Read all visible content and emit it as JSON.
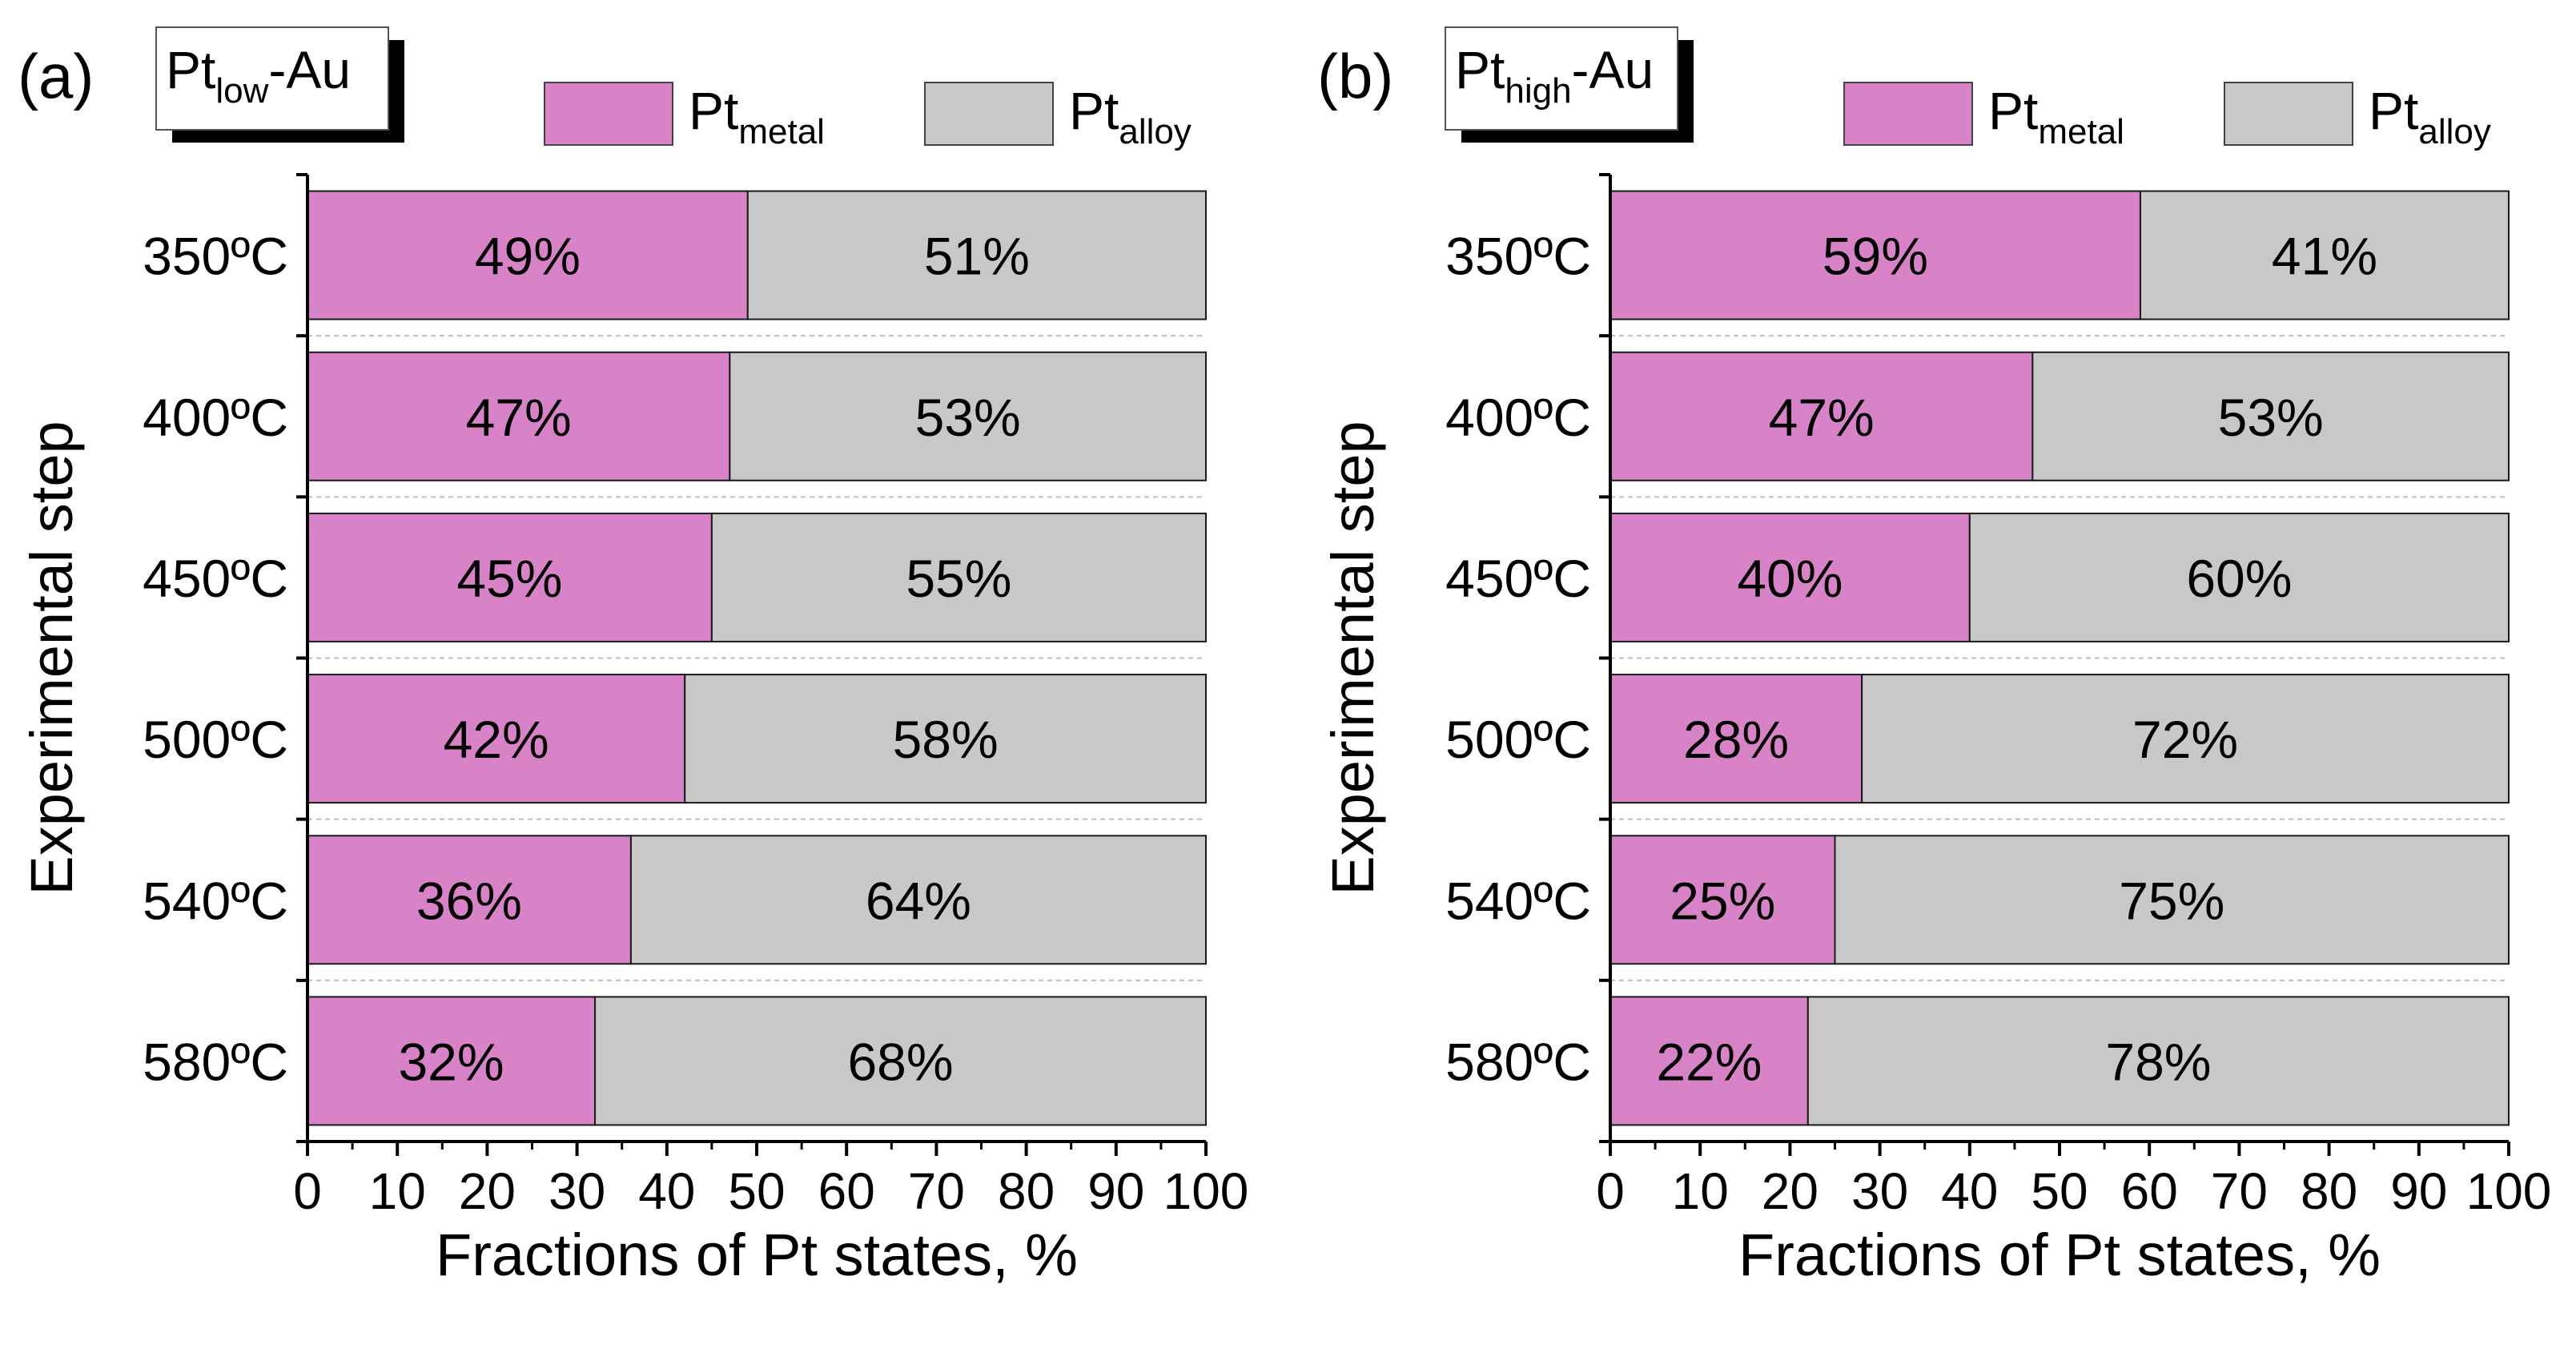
{
  "colors": {
    "metal": "#d883c8",
    "alloy": "#c8c8c8",
    "outline": "#1a1a1a",
    "grid": "#bdbdbd"
  },
  "chart_data": [
    {
      "type": "bar",
      "orientation": "horizontal",
      "stacked": true,
      "panel_label": "(a)",
      "sample": {
        "base": "Pt",
        "sub": "low",
        "suffix": "-Au"
      },
      "legend": [
        {
          "name_base": "Pt",
          "name_sub": "metal",
          "color_key": "metal"
        },
        {
          "name_base": "Pt",
          "name_sub": "alloy",
          "color_key": "alloy"
        }
      ],
      "legend_position": "top-right",
      "categories": [
        "350ºC",
        "400ºC",
        "450ºC",
        "500ºC",
        "540ºC",
        "580ºC"
      ],
      "series": [
        {
          "name": "Pt_metal",
          "values": [
            49,
            47,
            45,
            42,
            36,
            32
          ],
          "labels": [
            "49%",
            "47%",
            "45%",
            "42%",
            "36%",
            "32%"
          ]
        },
        {
          "name": "Pt_alloy",
          "values": [
            51,
            53,
            55,
            58,
            64,
            68
          ],
          "labels": [
            "51%",
            "53%",
            "55%",
            "58%",
            "64%",
            "68%"
          ]
        }
      ],
      "xlabel": "Fractions of Pt states, %",
      "ylabel": "Experimental step",
      "xlim": [
        0,
        100
      ],
      "xticks": [
        "0",
        "10",
        "20",
        "30",
        "40",
        "50",
        "60",
        "70",
        "80",
        "90",
        "100"
      ]
    },
    {
      "type": "bar",
      "orientation": "horizontal",
      "stacked": true,
      "panel_label": "(b)",
      "sample": {
        "base": "Pt",
        "sub": "high",
        "suffix": "-Au"
      },
      "legend": [
        {
          "name_base": "Pt",
          "name_sub": "metal",
          "color_key": "metal"
        },
        {
          "name_base": "Pt",
          "name_sub": "alloy",
          "color_key": "alloy"
        }
      ],
      "legend_position": "top-right",
      "categories": [
        "350ºC",
        "400ºC",
        "450ºC",
        "500ºC",
        "540ºC",
        "580ºC"
      ],
      "series": [
        {
          "name": "Pt_metal",
          "values": [
            59,
            47,
            40,
            28,
            25,
            22
          ],
          "labels": [
            "59%",
            "47%",
            "40%",
            "28%",
            "25%",
            "22%"
          ]
        },
        {
          "name": "Pt_alloy",
          "values": [
            41,
            53,
            60,
            72,
            75,
            78
          ],
          "labels": [
            "41%",
            "53%",
            "60%",
            "72%",
            "75%",
            "78%"
          ]
        }
      ],
      "xlabel": "Fractions of Pt states, %",
      "ylabel": "Experimental step",
      "xlim": [
        0,
        100
      ],
      "xticks": [
        "0",
        "10",
        "20",
        "30",
        "40",
        "50",
        "60",
        "70",
        "80",
        "90",
        "100"
      ]
    }
  ]
}
